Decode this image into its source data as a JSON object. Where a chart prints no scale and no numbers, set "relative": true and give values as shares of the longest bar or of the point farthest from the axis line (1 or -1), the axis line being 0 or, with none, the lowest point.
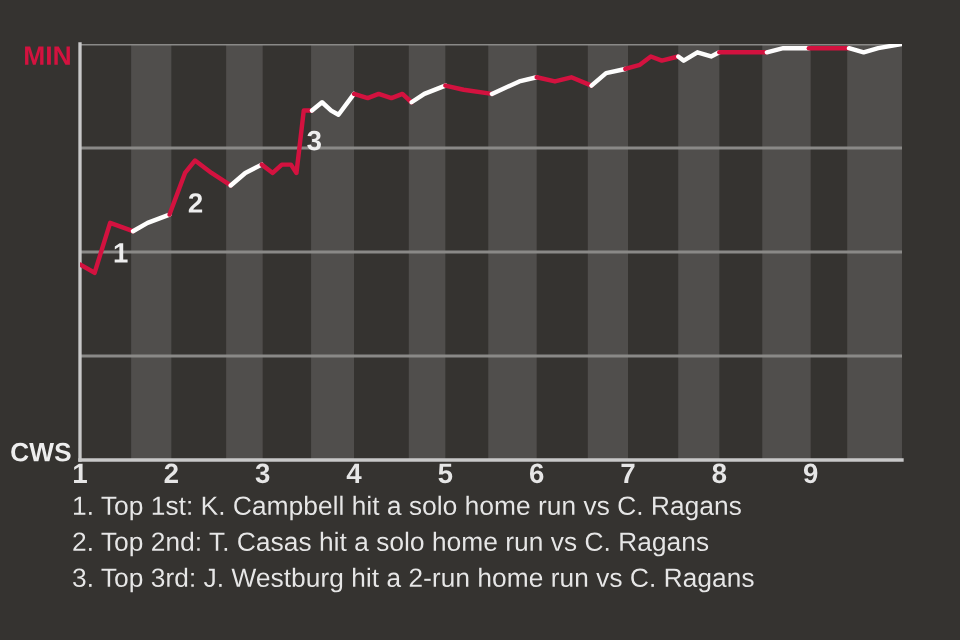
{
  "chart_data": {
    "type": "line",
    "relative": true,
    "xlim": [
      1,
      10
    ],
    "xticks": [
      1,
      2,
      3,
      4,
      5,
      6,
      7,
      8,
      9
    ],
    "series": [
      {
        "color": "#d3123f",
        "x": [
          1.0,
          1.16,
          1.33,
          1.58
        ],
        "values": [
          0.47,
          0.45,
          0.57,
          0.55
        ]
      },
      {
        "color": "#fffffe",
        "x": [
          1.58,
          1.74,
          1.98
        ],
        "values": [
          0.55,
          0.57,
          0.59
        ]
      },
      {
        "color": "#d3123f",
        "x": [
          1.98,
          2.15,
          2.26,
          2.44,
          2.65
        ],
        "values": [
          0.59,
          0.69,
          0.72,
          0.69,
          0.66
        ]
      },
      {
        "color": "#fffefe",
        "x": [
          2.65,
          2.81,
          2.99
        ],
        "values": [
          0.66,
          0.69,
          0.71
        ]
      },
      {
        "color": "#d3123f",
        "x": [
          2.99,
          3.11,
          3.21,
          3.31,
          3.37,
          3.45,
          3.54
        ],
        "values": [
          0.71,
          0.69,
          0.71,
          0.71,
          0.69,
          0.84,
          0.84
        ]
      },
      {
        "color": "#fefefe",
        "x": [
          3.54,
          3.65,
          3.75,
          3.83,
          4.0
        ],
        "values": [
          0.84,
          0.86,
          0.84,
          0.83,
          0.88
        ]
      },
      {
        "color": "#d3123f",
        "x": [
          4.0,
          4.15,
          4.27,
          4.41,
          4.53,
          4.63
        ],
        "values": [
          0.88,
          0.87,
          0.88,
          0.87,
          0.88,
          0.86
        ]
      },
      {
        "color": "#fefefd",
        "x": [
          4.63,
          4.77,
          5.0
        ],
        "values": [
          0.86,
          0.88,
          0.9
        ]
      },
      {
        "color": "#d3123f",
        "x": [
          5.0,
          5.2,
          5.51
        ],
        "values": [
          0.9,
          0.89,
          0.88
        ]
      },
      {
        "color": "#fefdfd",
        "x": [
          5.51,
          5.81,
          6.0
        ],
        "values": [
          0.88,
          0.91,
          0.92
        ]
      },
      {
        "color": "#d3123f",
        "x": [
          6.0,
          6.2,
          6.38,
          6.6
        ],
        "values": [
          0.92,
          0.91,
          0.92,
          0.9
        ]
      },
      {
        "color": "#fdfdfd",
        "x": [
          6.6,
          6.76,
          6.97
        ],
        "values": [
          0.9,
          0.93,
          0.94
        ]
      },
      {
        "color": "#d3123f",
        "x": [
          6.97,
          7.13,
          7.25,
          7.37,
          7.55
        ],
        "values": [
          0.94,
          0.95,
          0.97,
          0.96,
          0.97
        ]
      },
      {
        "color": "#fdfdfc",
        "x": [
          7.55,
          7.61,
          7.76,
          7.91,
          8.0
        ],
        "values": [
          0.97,
          0.96,
          0.98,
          0.97,
          0.98
        ]
      },
      {
        "color": "#d3123f",
        "x": [
          8.0,
          8.33,
          8.52
        ],
        "values": [
          0.98,
          0.98,
          0.98
        ]
      },
      {
        "color": "#fdfcfc",
        "x": [
          8.52,
          8.7,
          8.98
        ],
        "values": [
          0.98,
          0.99,
          0.99
        ]
      },
      {
        "color": "#d3123f",
        "x": [
          8.98,
          9.42
        ],
        "values": [
          0.99,
          0.99
        ]
      },
      {
        "color": "#ffffff",
        "x": [
          9.42,
          9.58,
          9.74,
          10
        ],
        "values": [
          0.99,
          0.98,
          0.99,
          1
        ]
      }
    ],
    "bands": [
      {
        "axis": "x",
        "from": 1.56,
        "to": 2,
        "color": "#504e4c"
      },
      {
        "axis": "x",
        "from": 2.6,
        "to": 3,
        "color": "#504e4c"
      },
      {
        "axis": "x",
        "from": 3.53,
        "to": 4,
        "color": "#504e4c"
      },
      {
        "axis": "x",
        "from": 4.6,
        "to": 5,
        "color": "#504e4c"
      },
      {
        "axis": "x",
        "from": 5.47,
        "to": 6,
        "color": "#504e4c"
      },
      {
        "axis": "x",
        "from": 6.56,
        "to": 7,
        "color": "#504e4c"
      },
      {
        "axis": "x",
        "from": 7.55,
        "to": 8,
        "color": "#504e4c"
      },
      {
        "axis": "x",
        "from": 8.47,
        "to": 9,
        "color": "#504e4c"
      },
      {
        "axis": "x",
        "from": 9.4,
        "to": 10,
        "color": "#504e4c"
      }
    ],
    "grid": "y",
    "marker": "none",
    "line_style": "solid",
    "annotations": [
      "MIN",
      "CWS",
      {
        "text": "1",
        "x": 1.33,
        "y": 0.57
      },
      {
        "text": "2",
        "x": 2.15,
        "y": 0.69
      },
      {
        "text": "3",
        "x": 3.45,
        "y": 0.84
      },
      "1. Top 1st: K. Campbell hit a solo home run vs C. Ragans",
      "2. Top 2nd: T. Casas hit a solo home run vs C. Ragans",
      "3. Top 3rd: J. Westburg hit a 2-run home run vs C. Ragans"
    ]
  }
}
